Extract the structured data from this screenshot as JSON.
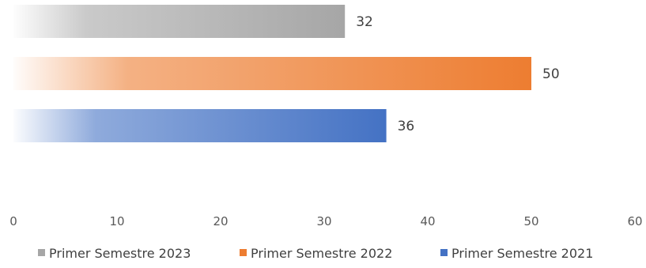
{
  "chart_data": {
    "type": "bar",
    "orientation": "horizontal",
    "series": [
      {
        "name": "Primer Semestre 2023",
        "values": [
          32
        ],
        "color": "#a6a6a6"
      },
      {
        "name": "Primer Semestre 2022",
        "values": [
          50
        ],
        "color": "#ed7d31"
      },
      {
        "name": "Primer Semestre 2021",
        "values": [
          36
        ],
        "color": "#4472c4"
      }
    ],
    "xlim": [
      0,
      60
    ],
    "xticks": [
      "0",
      "10",
      "20",
      "30",
      "40",
      "50",
      "60"
    ],
    "grid": false,
    "legend": "bottom",
    "title": "",
    "xlabel": "",
    "ylabel": ""
  }
}
